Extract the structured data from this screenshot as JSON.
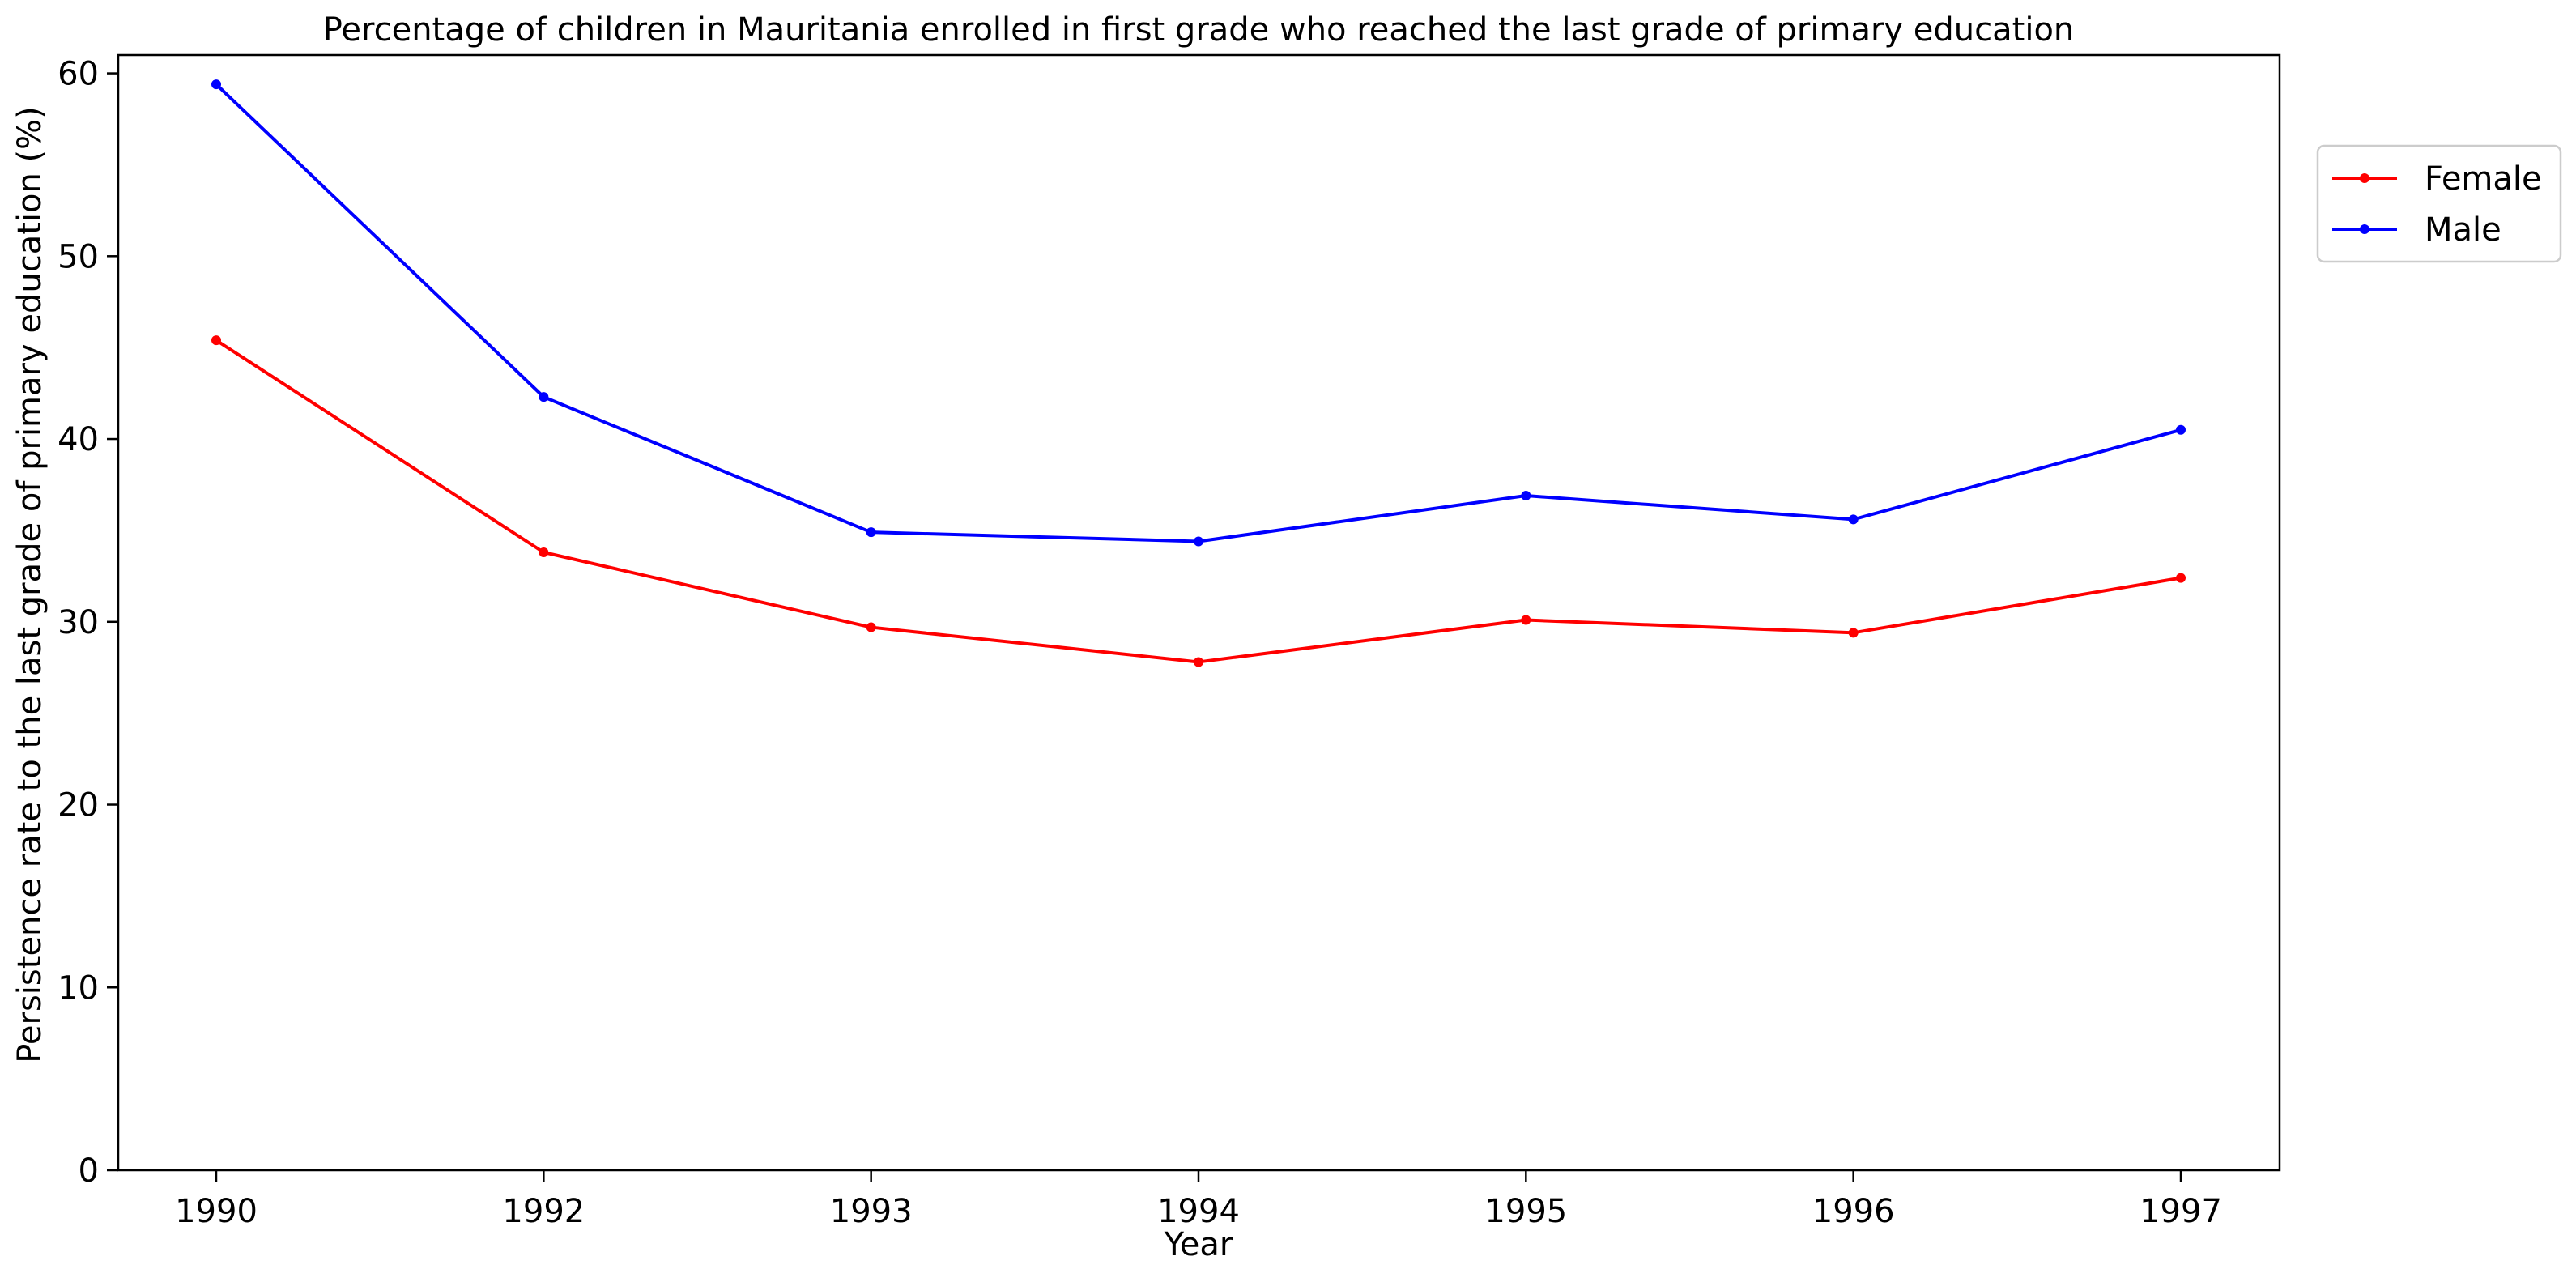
{
  "chart_data": {
    "type": "line",
    "title": "Percentage of children in Mauritania enrolled in first grade who reached the last grade of primary education",
    "xlabel": "Year",
    "ylabel": "Persistence rate to the last grade of primary education (%)",
    "categories": [
      "1990",
      "1992",
      "1993",
      "1994",
      "1995",
      "1996",
      "1997"
    ],
    "series": [
      {
        "name": "Female",
        "color": "#ff0000",
        "values": [
          45.4,
          33.8,
          29.7,
          27.8,
          30.1,
          29.4,
          32.4
        ]
      },
      {
        "name": "Male",
        "color": "#0000ff",
        "values": [
          59.4,
          42.3,
          34.9,
          34.4,
          36.9,
          35.6,
          40.5
        ]
      }
    ],
    "ylim": [
      0,
      61
    ],
    "yticks": [
      0,
      10,
      20,
      30,
      40,
      50,
      60
    ],
    "grid": false,
    "legend": {
      "placement": "outside-top-right",
      "entries": [
        "Female",
        "Male"
      ]
    }
  }
}
